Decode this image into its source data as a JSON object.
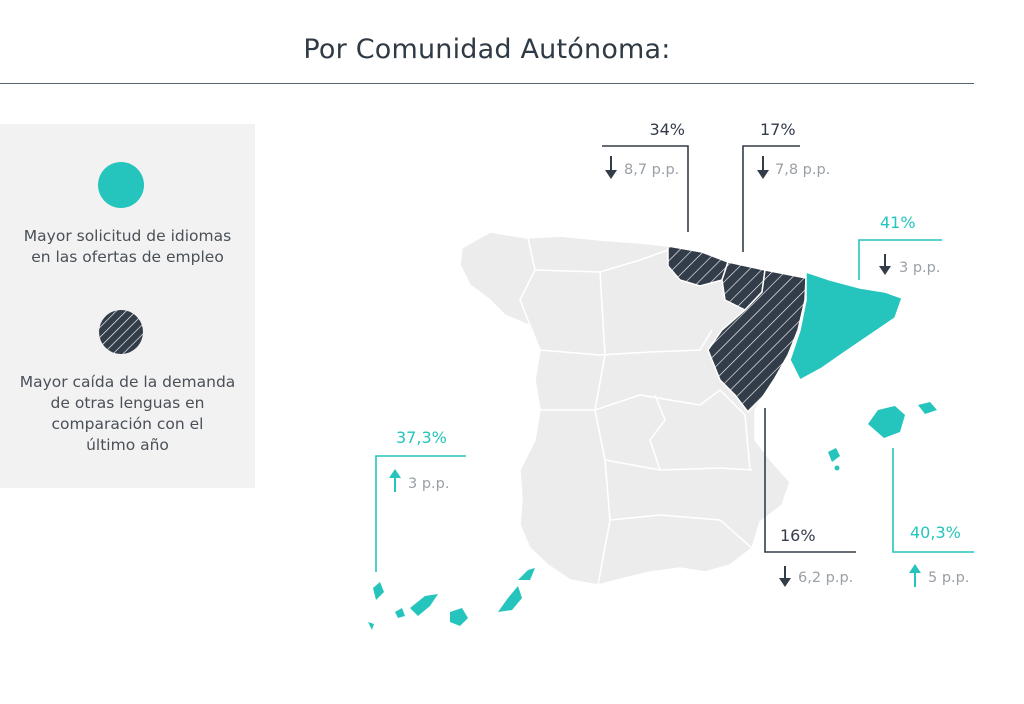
{
  "title": "Por Comunidad Autónoma:",
  "legend": {
    "items": [
      {
        "label_lines": [
          "Mayor solicitud de idiomas",
          "en las ofertas de empleo"
        ],
        "swatch": "teal-circle"
      },
      {
        "label_lines": [
          "Mayor caída de la demanda",
          "de otras lenguas en",
          "comparación con el",
          "último año"
        ],
        "swatch": "hatched-dark-circle"
      }
    ]
  },
  "colors": {
    "teal": "#25c4bc",
    "dark": "#333d4a",
    "land": "#ececec",
    "border": "#ffffff",
    "muted": "#9aa0a6"
  },
  "callouts": [
    {
      "region": "País Vasco",
      "value": "34%",
      "change": "8,7 p.p.",
      "direction": "down",
      "highlight": "decline"
    },
    {
      "region": "Navarra",
      "value": "17%",
      "change": "7,8 p.p.",
      "direction": "down",
      "highlight": "decline"
    },
    {
      "region": "Cataluña",
      "value": "41%",
      "change": "3 p.p.",
      "direction": "down",
      "highlight": "demand"
    },
    {
      "region": "Islas Canarias",
      "value": "37,3%",
      "change": "3 p.p.",
      "direction": "up",
      "highlight": "demand"
    },
    {
      "region": "Aragón",
      "value": "16%",
      "change": "6,2 p.p.",
      "direction": "down",
      "highlight": "decline"
    },
    {
      "region": "Islas Baleares",
      "value": "40,3%",
      "change": "5 p.p.",
      "direction": "up",
      "highlight": "demand"
    }
  ]
}
